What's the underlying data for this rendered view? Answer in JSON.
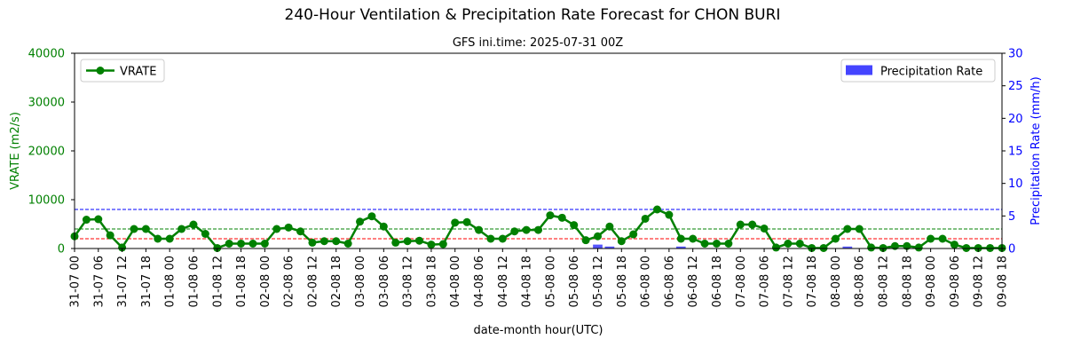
{
  "chart_data": {
    "type": "line",
    "title": "240-Hour Ventilation & Precipitation Rate Forecast for CHON BURI",
    "subtitle": "GFS ini.time: 2025-07-31 00Z",
    "xlabel": "date-month hour(UTC)",
    "ylabel_left": "VRATE (m2/s)",
    "ylabel_right": "Precipitation Rate (mm/h)",
    "ylim_left": [
      0,
      40000
    ],
    "ylim_right": [
      0,
      30
    ],
    "yticks_left": [
      "0",
      "10000",
      "20000",
      "30000",
      "40000"
    ],
    "yticks_right": [
      "0",
      "5",
      "10",
      "15",
      "20",
      "25",
      "30"
    ],
    "x_ticks": [
      "31-07 00",
      "31-07 06",
      "31-07 12",
      "31-07 18",
      "01-08 00",
      "01-08 06",
      "01-08 12",
      "01-08 18",
      "02-08 00",
      "02-08 06",
      "02-08 12",
      "02-08 18",
      "03-08 00",
      "03-08 06",
      "03-08 12",
      "03-08 18",
      "04-08 00",
      "04-08 06",
      "04-08 12",
      "04-08 18",
      "05-08 00",
      "05-08 06",
      "05-08 12",
      "05-08 18",
      "06-08 00",
      "06-08 06",
      "06-08 12",
      "06-08 18",
      "07-08 00",
      "07-08 06",
      "07-08 12",
      "07-08 18",
      "08-08 00",
      "08-08 06",
      "08-08 12",
      "08-08 18",
      "09-08 00",
      "09-08 06",
      "09-08 12",
      "09-08 18"
    ],
    "x_step_hours": 3,
    "grid": false,
    "legend_left_position": "upper-left",
    "legend_right_position": "upper-right",
    "series": [
      {
        "name": "VRATE",
        "axis": "left",
        "kind": "line",
        "color": "#008000",
        "values": [
          2500,
          5900,
          6000,
          2700,
          200,
          4000,
          4000,
          2000,
          2000,
          4000,
          4900,
          3000,
          100,
          1000,
          1000,
          1000,
          1000,
          4000,
          4300,
          3500,
          1200,
          1500,
          1500,
          1000,
          5500,
          6600,
          4500,
          1200,
          1500,
          1600,
          800,
          900,
          5300,
          5400,
          3800,
          2000,
          2000,
          3500,
          3800,
          3800,
          6800,
          6300,
          4800,
          1700,
          2500,
          4500,
          1500,
          2900,
          6100,
          8000,
          6900,
          2000,
          2000,
          1000,
          1000,
          1000,
          4900,
          4900,
          4100,
          200,
          1000,
          1000,
          100,
          100,
          2000,
          4000,
          4000,
          200,
          100,
          500,
          500,
          200,
          2000,
          2000,
          800,
          100,
          100,
          100,
          100
        ]
      },
      {
        "name": "Precipitation Rate",
        "axis": "right",
        "kind": "bar",
        "color": "#4444ff",
        "values": [
          0,
          0,
          0,
          0,
          0,
          0,
          0,
          0,
          0,
          0,
          0,
          0,
          0,
          0,
          0,
          0,
          0,
          0,
          0,
          0,
          0,
          0,
          0,
          0,
          0,
          0,
          0,
          0,
          0,
          0,
          0,
          0,
          0,
          0,
          0,
          0,
          0,
          0,
          0,
          0,
          0,
          0,
          0,
          0,
          0.6,
          0.3,
          0,
          0,
          0,
          0,
          0,
          0.3,
          0,
          0,
          0,
          0,
          0,
          0,
          0,
          0,
          0,
          0,
          0,
          0,
          0,
          0.3,
          0,
          0,
          0,
          0,
          0,
          0,
          0,
          0,
          0,
          0,
          0,
          0,
          0
        ]
      }
    ],
    "reference_lines": [
      {
        "axis": "left",
        "value": 8000,
        "color": "#0000ff",
        "style": "dashed"
      },
      {
        "axis": "left",
        "value": 4000,
        "color": "#008000",
        "style": "dashed"
      },
      {
        "axis": "left",
        "value": 2000,
        "color": "#ff0000",
        "style": "dashed"
      }
    ],
    "colors": {
      "left_axis": "#008000",
      "right_axis": "#0000ff"
    }
  }
}
